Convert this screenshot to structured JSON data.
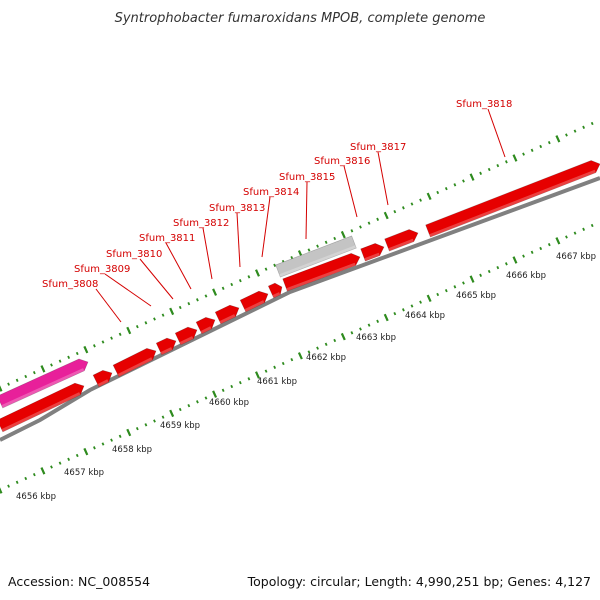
{
  "title": "Syntrophobacter fumaroxidans MPOB, complete genome",
  "footer": {
    "accession": "Accession: NC_008554",
    "summary": "Topology: circular; Length: 4,990,251 bp; Genes: 4,127"
  },
  "colors": {
    "gene_forward": "#e60000",
    "gene_highlight": "#e8209a",
    "gene_gray": "#c4c4c4",
    "backbone": "#808080",
    "tick": "#2e8b1e",
    "label": "#d40000"
  },
  "scale": {
    "unit": "kbp",
    "labels": [
      "4656 kbp",
      "4657 kbp",
      "4658 kbp",
      "4659 kbp",
      "4660 kbp",
      "4661 kbp",
      "4662 kbp",
      "4663 kbp",
      "4664 kbp",
      "4665 kbp",
      "4666 kbp",
      "4667 kbp"
    ]
  },
  "genes": [
    {
      "name": "Sfum_3808",
      "labeled": true
    },
    {
      "name": "Sfum_3809",
      "labeled": true
    },
    {
      "name": "Sfum_3810",
      "labeled": true
    },
    {
      "name": "Sfum_3811",
      "labeled": true
    },
    {
      "name": "Sfum_3812",
      "labeled": true
    },
    {
      "name": "Sfum_3813",
      "labeled": true
    },
    {
      "name": "Sfum_3814",
      "labeled": true
    },
    {
      "name": "Sfum_3815",
      "labeled": true
    },
    {
      "name": "Sfum_3816",
      "labeled": true
    },
    {
      "name": "Sfum_3817",
      "labeled": true
    },
    {
      "name": "Sfum_3818",
      "labeled": true
    }
  ]
}
